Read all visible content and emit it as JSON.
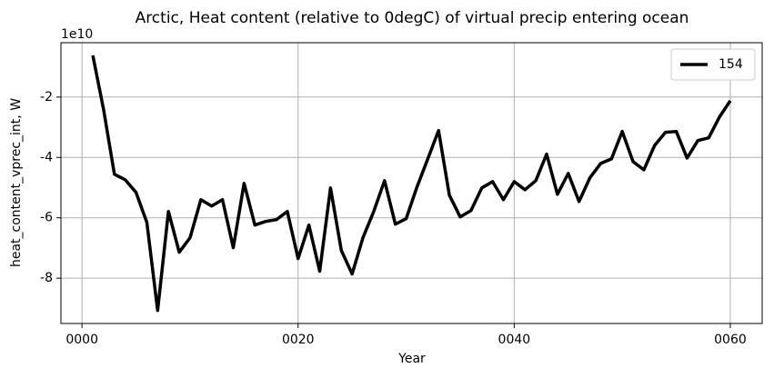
{
  "chart_data": {
    "type": "line",
    "title": "Arctic, Heat content (relative to 0degC) of virtual precip entering ocean",
    "x_label": "Year",
    "y_label": "heat_content_vprec_int, W",
    "y_offset_label": "1e10",
    "x": [
      1,
      2,
      3,
      4,
      5,
      6,
      7,
      8,
      9,
      10,
      11,
      12,
      13,
      14,
      15,
      16,
      17,
      18,
      19,
      20,
      21,
      22,
      23,
      24,
      25,
      26,
      27,
      28,
      29,
      30,
      31,
      32,
      33,
      34,
      35,
      36,
      37,
      38,
      39,
      40,
      41,
      42,
      43,
      44,
      45,
      46,
      47,
      48,
      49,
      50,
      51,
      52,
      53,
      54,
      55,
      56,
      57,
      58,
      59,
      60
    ],
    "series": [
      {
        "name": "154",
        "color": "#000000",
        "values": [
          -0.62,
          -2.42,
          -4.56,
          -4.74,
          -5.16,
          -6.15,
          -9.07,
          -5.79,
          -7.14,
          -6.66,
          -5.4,
          -5.61,
          -5.4,
          -6.99,
          -4.86,
          -6.24,
          -6.12,
          -6.06,
          -5.79,
          -7.35,
          -6.24,
          -7.77,
          -5.01,
          -7.08,
          -7.86,
          -6.66,
          -5.79,
          -4.77,
          -6.21,
          -6.03,
          -4.98,
          -4.05,
          -3.11,
          -5.25,
          -5.97,
          -5.76,
          -5.01,
          -4.8,
          -5.4,
          -4.8,
          -5.07,
          -4.77,
          -3.89,
          -5.22,
          -4.53,
          -5.46,
          -4.68,
          -4.2,
          -4.05,
          -3.14,
          -4.14,
          -4.41,
          -3.6,
          -3.17,
          -3.14,
          -4.02,
          -3.44,
          -3.35,
          -2.66,
          -2.12
        ]
      }
    ],
    "xlim": [
      -1.95,
      62.95
    ],
    "xticks": [
      {
        "value": 0,
        "label": "0000"
      },
      {
        "value": 20,
        "label": "0020"
      },
      {
        "value": 40,
        "label": "0040"
      },
      {
        "value": 60,
        "label": "0060"
      }
    ],
    "ylim": [
      -9.5,
      -0.2
    ],
    "yticks": [
      -8,
      -6,
      -4,
      -2
    ],
    "grid": true,
    "legend": "upper right"
  }
}
